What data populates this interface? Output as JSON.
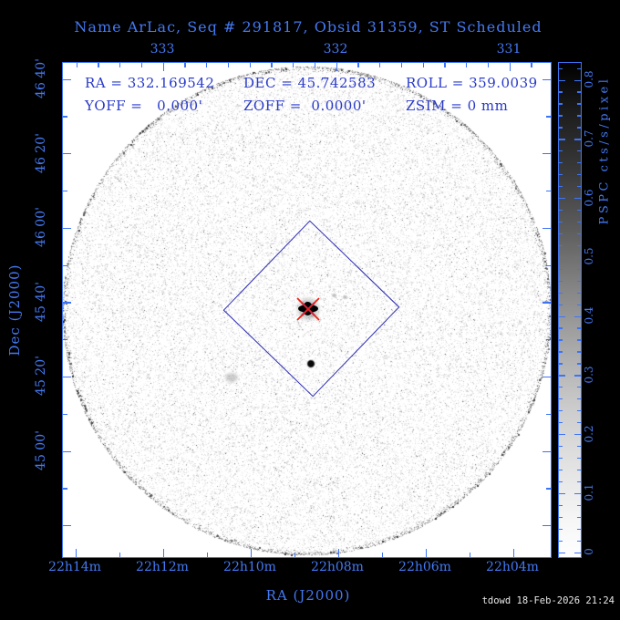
{
  "title": "Name ArLac, Seq # 291817, Obsid 31359, ST Scheduled",
  "info": {
    "ra": "RA = 332.169542",
    "dec": "DEC = 45.742583",
    "roll": "ROLL = 359.0039",
    "yoff": "YOFF =   0.000'",
    "zoff": "ZOFF =  0.0000'",
    "zsim": "ZSIM = 0 mm"
  },
  "axes": {
    "top": {
      "tick_labels": [
        "333",
        "332",
        "331"
      ]
    },
    "bottom": {
      "title": "RA (J2000)",
      "tick_labels": [
        "22h14m",
        "22h12m",
        "22h10m",
        "22h08m",
        "22h06m",
        "22h04m"
      ]
    },
    "left": {
      "title": "Dec (J2000)",
      "tick_labels": [
        "46 40'",
        "46 20'",
        "46 00'",
        "45 40'",
        "45 20'",
        "45 00'"
      ]
    }
  },
  "colorbar": {
    "title": "PSPC cts/s/pixel",
    "tick_labels": [
      "0.8",
      "0.7",
      "0.6",
      "0.5",
      "0.4",
      "0.3",
      "0.2",
      "0.1",
      "0"
    ]
  },
  "footer": "tdowd 18-Feb-2026 21:24",
  "colors": {
    "background": "#000000",
    "field": "#ffffff",
    "axis_blue": "#3d74f5",
    "annotation_blue": "#2839c9",
    "fov_outline_blue": "#2b2bb4",
    "marker_red": "#ee2211",
    "marker_blue": "#2222ee"
  },
  "chart_data": {
    "type": "heatmap",
    "title": "Name ArLac, Seq # 291817, Obsid 31359, ST Scheduled",
    "xlabel": "RA (J2000)",
    "ylabel": "Dec (J2000)",
    "x_ticks_bottom": [
      "22h14m",
      "22h12m",
      "22h10m",
      "22h08m",
      "22h06m",
      "22h04m"
    ],
    "x_ticks_top_degrees": [
      333,
      332,
      331
    ],
    "y_ticks": [
      "46 40'",
      "46 20'",
      "46 00'",
      "45 40'",
      "45 20'",
      "45 00'"
    ],
    "colorbar_label": "PSPC cts/s/pixel",
    "colorbar_range": [
      0,
      0.8
    ],
    "colorbar_tick_step": 0.1,
    "field_of_view": {
      "shape": "circle",
      "center_ra_deg": 332.169542,
      "center_dec_deg": 45.742583,
      "radius_deg": 1.1,
      "content": "sparse light-gray photon noise, darker speckled rim"
    },
    "detector_outline": {
      "shape": "square-diamond",
      "center_ra_deg": 332.169542,
      "center_dec_deg": 45.742583,
      "half_diagonal_arcmin": 24,
      "roll_deg": 359.0039
    },
    "sources": [
      {
        "name": "ArLac (target)",
        "ra_deg": 332.1695,
        "dec_deg": 45.7426,
        "marker": "red X over blue X on black blob",
        "intensity": "saturated dark"
      },
      {
        "name": "secondary source",
        "ra_deg": 332.15,
        "dec_deg": 45.5,
        "marker": "none",
        "intensity": "small dark dot"
      },
      {
        "name": "faint smudge",
        "ra_deg": 332.52,
        "dec_deg": 45.44,
        "marker": "none",
        "intensity": "very faint gray"
      }
    ],
    "annotations": [
      "RA = 332.169542",
      "DEC = 45.742583",
      "ROLL = 359.0039",
      "YOFF = 0.000'",
      "ZOFF = 0.0000'",
      "ZSIM = 0 mm"
    ],
    "legend_position": "right-colorbar",
    "grid": false
  }
}
